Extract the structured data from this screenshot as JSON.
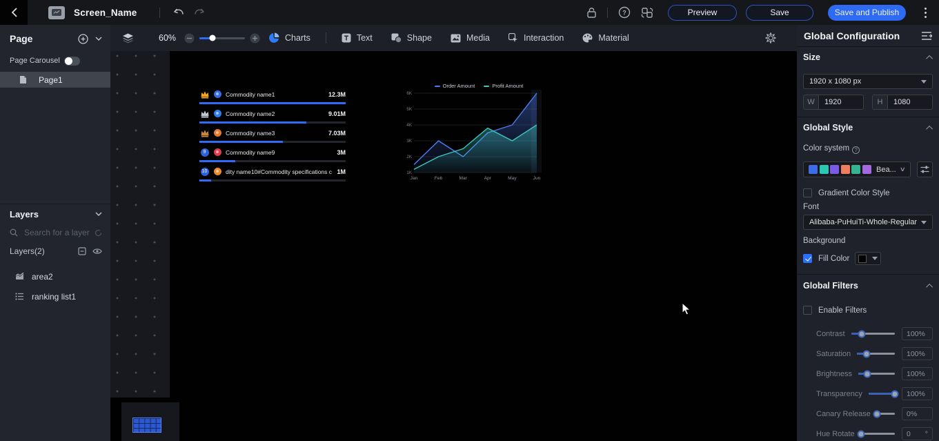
{
  "topbar": {
    "title": "Screen_Name",
    "preview_label": "Preview",
    "save_label": "Save",
    "save_publish_label": "Save and Publish"
  },
  "toolbar": {
    "zoom_level": "60%",
    "menu_charts": "Charts",
    "menu_text": "Text",
    "menu_shape": "Shape",
    "menu_media": "Media",
    "menu_interaction": "Interaction",
    "menu_material": "Material"
  },
  "sidebar": {
    "page_header": "Page",
    "page_carousel_label": "Page Carousel",
    "page_carousel_on": false,
    "page1": "Page1",
    "layers_header": "Layers",
    "search_placeholder": "Search for a layer",
    "layers_count": "Layers(2)",
    "layer_items": [
      {
        "name": "area2"
      },
      {
        "name": "ranking list1"
      }
    ]
  },
  "ranking_widget": {
    "rows": [
      {
        "rank": "1",
        "badge": "crown-gold",
        "name": "Commodity name1",
        "value": "12.3M",
        "value_num": 12.3,
        "avatar_color": "#3a6be0"
      },
      {
        "rank": "2",
        "badge": "crown-silver",
        "name": "Commodity name2",
        "value": "9.01M",
        "value_num": 9.01,
        "avatar_color": "#2f7de8"
      },
      {
        "rank": "3",
        "badge": "crown-bronze",
        "name": "Commodity name3",
        "value": "7.03M",
        "value_num": 7.03,
        "avatar_color": "#e8782a"
      },
      {
        "rank": "9",
        "badge": "number",
        "name": "Commodity name9",
        "value": "3M",
        "value_num": 3,
        "avatar_color": "#e23a4e"
      },
      {
        "rank": "10",
        "badge": "number",
        "name": "dity name10#Commodity specifications c",
        "value": "1M",
        "value_num": 1,
        "avatar_color": "#ec8c2e"
      }
    ]
  },
  "chart_data": {
    "type": "area",
    "x": [
      "Jan",
      "Feb",
      "Mar",
      "Apr",
      "May",
      "Jun"
    ],
    "series": [
      {
        "name": "Order Amount",
        "color": "#4d7df2",
        "values": [
          1500,
          3000,
          2000,
          3500,
          4000,
          6000
        ]
      },
      {
        "name": "Profit Amount",
        "color": "#3fc8bc",
        "values": [
          1200,
          2000,
          2500,
          3800,
          3000,
          4000
        ]
      }
    ],
    "ylim": [
      1000,
      6000
    ],
    "yticks": [
      "1K",
      "2K",
      "3K",
      "4K",
      "5K",
      "6K"
    ],
    "legend_position": "top",
    "grid": true
  },
  "config": {
    "title": "Global Configuration",
    "size": {
      "header": "Size",
      "preset": "1920 x 1080 px",
      "w_label": "W",
      "w_value": "1920",
      "h_label": "H",
      "h_value": "1080"
    },
    "style": {
      "header": "Global Style",
      "color_system_label": "Color system",
      "palette_name": "Bea...",
      "palette_colors": [
        "#3d6ce8",
        "#2cc8b4",
        "#7b5be6",
        "#ee7e5f",
        "#35b393",
        "#a468e0"
      ],
      "gradient_label": "Gradient Color Style",
      "gradient_on": false,
      "font_label": "Font",
      "font_value": "Alibaba-PuHuiTi-Whole-Regular",
      "background_label": "Background",
      "fill_color_label": "Fill Color",
      "fill_color_value": "#000000",
      "fill_color_on": true
    },
    "filters": {
      "header": "Global Filters",
      "enable_label": "Enable Filters",
      "enable_on": false,
      "rows": [
        {
          "label": "Contrast",
          "value": "100%",
          "suffix": "",
          "pos": 25
        },
        {
          "label": "Saturation",
          "value": "100%",
          "suffix": "",
          "pos": 25
        },
        {
          "label": "Brightness",
          "value": "100%",
          "suffix": "",
          "pos": 25
        },
        {
          "label": "Transparency",
          "value": "100%",
          "suffix": "",
          "pos": 100
        },
        {
          "label": "Canary Release",
          "value": "0%",
          "suffix": "",
          "pos": 0
        },
        {
          "label": "Hue Rotate",
          "value": "0",
          "suffix": "°",
          "pos": 0
        }
      ]
    }
  }
}
